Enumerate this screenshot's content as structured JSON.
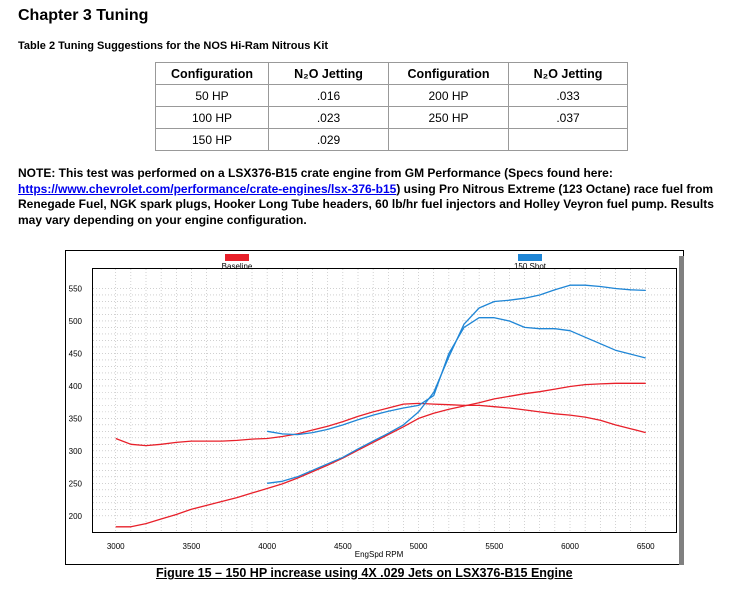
{
  "heading": "Chapter 3 Tuning",
  "table": {
    "caption": "Table 2 Tuning Suggestions for the NOS Hi-Ram Nitrous Kit",
    "headers": [
      "Configuration",
      "N₂O Jetting",
      "Configuration",
      "N₂O Jetting"
    ],
    "rows": [
      [
        "50 HP",
        ".016",
        "200 HP",
        ".033"
      ],
      [
        "100 HP",
        ".023",
        "250 HP",
        ".037"
      ],
      [
        "150 HP",
        ".029",
        "",
        ""
      ]
    ]
  },
  "note": {
    "lead": "NOTE: This test was performed on a LSX376-B15 crate engine from GM Performance (Specs found here: ",
    "link": "https://www.chevrolet.com/performance/crate-engines/lsx-376-b15",
    "tail": ") using Pro Nitrous Extreme (123 Octane) race fuel from Renegade Fuel, NGK spark plugs, Hooker Long Tube headers, 60 lb/hr fuel injectors and Holley Veyron fuel pump.  Results may vary depending on your engine configuration."
  },
  "chart_data": {
    "type": "line",
    "xlabel": "EngSpd RPM",
    "ylabel": "",
    "xlim": [
      2850,
      6700
    ],
    "ylim": [
      175,
      580
    ],
    "xticks": [
      3000,
      3500,
      4000,
      4500,
      5000,
      5500,
      6000,
      6500
    ],
    "yticks": [
      200,
      250,
      300,
      350,
      400,
      450,
      500,
      550
    ],
    "grid": true,
    "legend": "top",
    "series": [
      {
        "name": "Baseline",
        "color": "#e8202a",
        "curves": [
          {
            "x": [
              3000,
              3100,
              3200,
              3300,
              3400,
              3500,
              3600,
              3700,
              3800,
              3900,
              4000,
              4100,
              4200,
              4300,
              4400,
              4500,
              4600,
              4700,
              4800,
              4900,
              5000,
              5100,
              5200,
              5300,
              5400,
              5500,
              5600,
              5700,
              5800,
              5900,
              6000,
              6100,
              6200,
              6300,
              6400,
              6500
            ],
            "y": [
              319,
              310,
              308,
              310,
              313,
              315,
              315,
              315,
              316,
              318,
              319,
              322,
              326,
              332,
              338,
              345,
              353,
              360,
              366,
              372,
              373,
              372,
              371,
              370,
              370,
              368,
              366,
              363,
              360,
              357,
              355,
              352,
              347,
              340,
              334,
              328
            ]
          },
          {
            "x": [
              3000,
              3100,
              3200,
              3300,
              3400,
              3500,
              3600,
              3700,
              3800,
              3900,
              4000,
              4100,
              4200,
              4300,
              4400,
              4500,
              4600,
              4700,
              4800,
              4900,
              5000,
              5100,
              5200,
              5300,
              5400,
              5500,
              5600,
              5700,
              5800,
              5900,
              6000,
              6100,
              6200,
              6300,
              6400,
              6500
            ],
            "y": [
              183,
              183,
              188,
              195,
              202,
              210,
              216,
              222,
              228,
              235,
              242,
              249,
              258,
              268,
              278,
              289,
              301,
              313,
              325,
              337,
              350,
              358,
              364,
              369,
              374,
              380,
              384,
              388,
              391,
              395,
              399,
              402,
              403,
              404,
              404,
              404
            ]
          }
        ]
      },
      {
        "name": "150 Shot",
        "color": "#1f86d6",
        "curves": [
          {
            "x": [
              4000,
              4100,
              4200,
              4300,
              4400,
              4500,
              4600,
              4700,
              4800,
              4900,
              5000,
              5100,
              5200,
              5300,
              5400,
              5500,
              5600,
              5700,
              5800,
              5900,
              6000,
              6100,
              6200,
              6300,
              6400,
              6500
            ],
            "y": [
              330,
              326,
              325,
              328,
              333,
              340,
              348,
              355,
              361,
              366,
              370,
              385,
              450,
              490,
              505,
              505,
              500,
              490,
              488,
              488,
              485,
              475,
              465,
              455,
              449,
              443
            ]
          },
          {
            "x": [
              4000,
              4100,
              4200,
              4300,
              4400,
              4500,
              4600,
              4700,
              4800,
              4900,
              5000,
              5100,
              5200,
              5300,
              5400,
              5500,
              5600,
              5700,
              5800,
              5900,
              6000,
              6100,
              6200,
              6300,
              6400,
              6500
            ],
            "y": [
              250,
              253,
              260,
              270,
              280,
              290,
              303,
              315,
              327,
              340,
              360,
              390,
              445,
              495,
              520,
              530,
              532,
              535,
              540,
              548,
              555,
              555,
              553,
              550,
              548,
              547
            ]
          }
        ]
      }
    ]
  },
  "figure_caption": "Figure 15 – 150 HP increase using 4X .029 Jets on LSX376-B15 Engine"
}
